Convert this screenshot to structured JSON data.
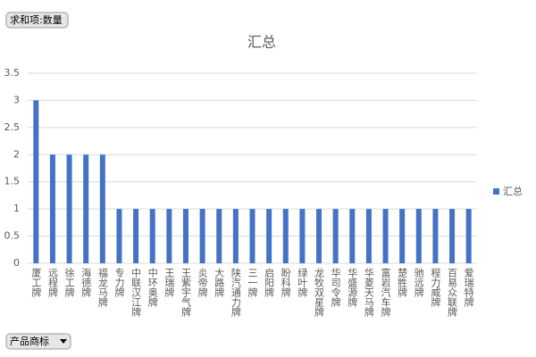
{
  "chart_data": {
    "type": "bar",
    "title": "汇总",
    "categories": [
      "厦工牌",
      "远程牌",
      "徐工牌",
      "海德牌",
      "福龙马牌",
      "专力牌",
      "中联汉江牌",
      "中环奥牌",
      "王瑞牌",
      "王紫宇气牌",
      "炎帝牌",
      "大路牌",
      "陕汽通力牌",
      "三一牌",
      "启阳牌",
      "盼科牌",
      "绿叶牌",
      "龙牧双星牌",
      "华司令牌",
      "华盛源牌",
      "华菱天马牌",
      "富岩汽车牌",
      "楚胜牌",
      "驰远牌",
      "程力威牌",
      "百易众联牌",
      "爱瑞特牌"
    ],
    "series": [
      {
        "name": "汇总",
        "color": "#4472c4",
        "values": [
          3,
          2,
          2,
          2,
          2,
          1,
          1,
          1,
          1,
          1,
          1,
          1,
          1,
          1,
          1,
          1,
          1,
          1,
          1,
          1,
          1,
          1,
          1,
          1,
          1,
          1,
          1
        ]
      }
    ],
    "ylim": [
      0,
      3.5
    ],
    "yticks": [
      0,
      0.5,
      1,
      1.5,
      2,
      2.5,
      3,
      3.5
    ],
    "grid": true,
    "legend": "right"
  },
  "pivot": {
    "value_field": "求和项:数量",
    "row_field": "产品商标"
  }
}
